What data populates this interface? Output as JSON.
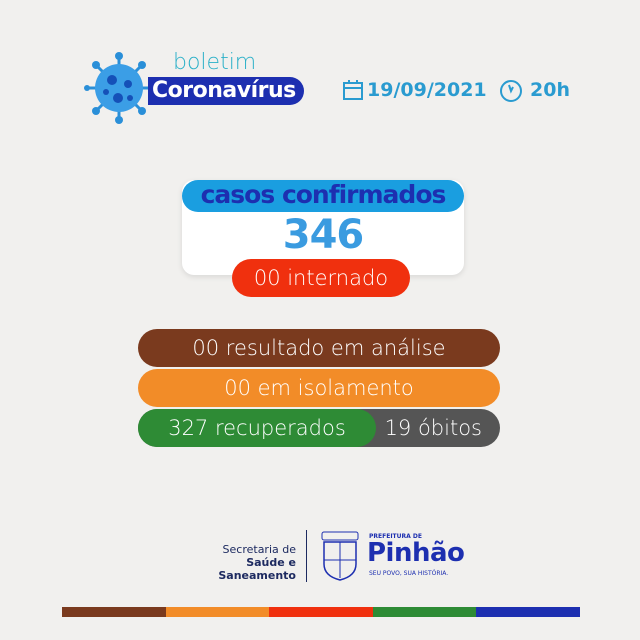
{
  "header": {
    "brand_small": "boletim",
    "brand_big": "Coronavírus",
    "date": "19/09/2021",
    "time": "20h",
    "icons": [
      "virus-icon",
      "calendar-icon",
      "clock-icon"
    ]
  },
  "card": {
    "title": "casos confirmados",
    "total": "346",
    "hospitalized": "00 internado"
  },
  "stats": {
    "analysis": "00 resultado em análise",
    "isolation": "00 em isolamento",
    "recovered": "327 recuperados",
    "deaths": "19 óbitos"
  },
  "footer": {
    "dept_line1": "Secretaria de",
    "dept_line2": "Saúde e Saneamento",
    "pref_small": "PREFEITURA DE",
    "city": "Pinhão",
    "slogan": "SEU POVO, SUA HISTÓRIA.",
    "crest_text": "PINHÃO"
  },
  "colors": {
    "blue": "#1a9ee0",
    "navy": "#1d2fb0",
    "red": "#f0300e",
    "brown": "#7a3a1e",
    "orange": "#f28c28",
    "green": "#2e8b35",
    "gray": "#555555",
    "stripe": [
      "#7a3a1e",
      "#f28c28",
      "#f0300e",
      "#2e8b35",
      "#1d2fb0"
    ]
  }
}
